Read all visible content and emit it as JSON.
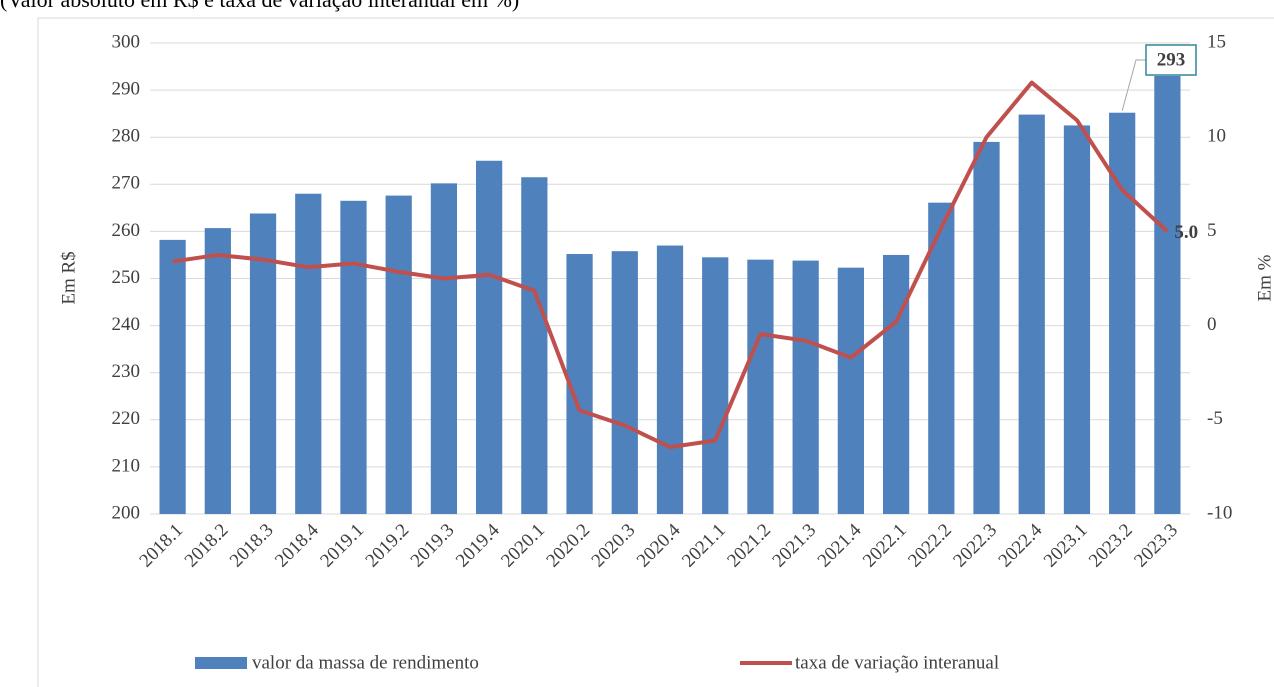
{
  "chart_data": {
    "type": "bar-line",
    "subtitle": "(Valor absoluto em R$ e taxa de variação interanual em %)",
    "y_label": "Em R$",
    "y2_label": "Em %",
    "categories": [
      "2018.1",
      "2018.2",
      "2018.3",
      "2018.4",
      "2019.1",
      "2019.2",
      "2019.3",
      "2019.4",
      "2020.1",
      "2020.2",
      "2020.3",
      "2020.4",
      "2021.1",
      "2021.2",
      "2021.3",
      "2021.4",
      "2022.1",
      "2022.2",
      "2022.3",
      "2022.4",
      "2023.1",
      "2023.2",
      "2023.3"
    ],
    "series": [
      {
        "name": "valor da massa de rendimento",
        "type": "bar",
        "color": "#4f81bd",
        "values": [
          258.2,
          260.7,
          263.8,
          268,
          266.5,
          267.6,
          270.2,
          275,
          271.5,
          255.2,
          255.8,
          257,
          254.5,
          254,
          253.8,
          252.3,
          255,
          266.1,
          279,
          284.8,
          282.5,
          285.2,
          293
        ],
        "labeled": [
          22
        ]
      },
      {
        "name": "taxa de variação interanual",
        "type": "line",
        "color": "#c0504d",
        "axis": "y2",
        "values": [
          3.4,
          3.75,
          3.5,
          3.1,
          3.3,
          2.85,
          2.5,
          2.7,
          1.85,
          -4.5,
          -5.3,
          -6.45,
          -6.1,
          -0.45,
          -0.8,
          -1.7,
          0.2,
          5.2,
          10,
          12.9,
          10.9,
          7.2,
          5.0
        ],
        "value_labels": [
          null,
          null,
          null,
          null,
          null,
          null,
          null,
          null,
          null,
          null,
          null,
          null,
          null,
          null,
          null,
          null,
          null,
          null,
          null,
          null,
          null,
          null,
          "5.0"
        ]
      }
    ],
    "ylim": [
      200,
      300
    ],
    "yticks": [
      200,
      210,
      220,
      230,
      240,
      250,
      260,
      270,
      280,
      290,
      300
    ],
    "y2lim": [
      -10,
      15
    ],
    "y2ticks": [
      -10,
      -5,
      0,
      5,
      10,
      15
    ],
    "grid": true,
    "legend": "bottom"
  }
}
